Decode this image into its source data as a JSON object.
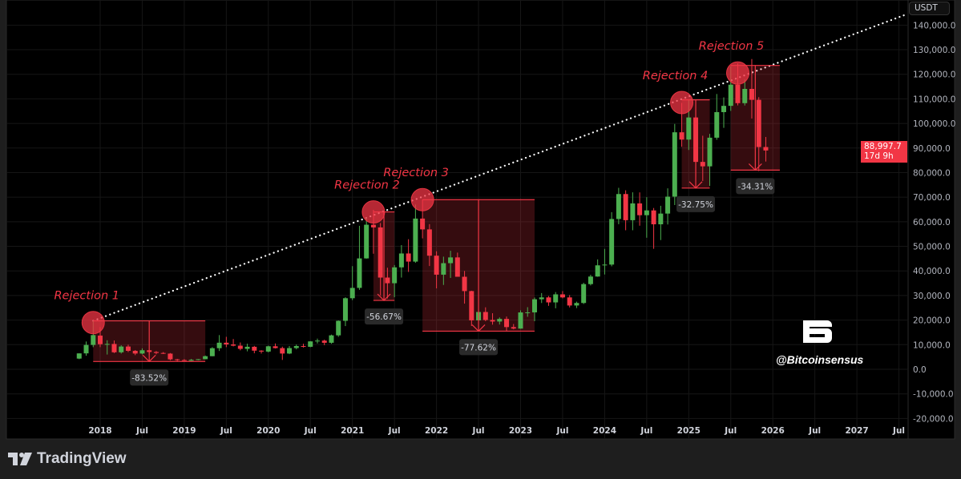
{
  "currency_label": "USDT",
  "last_price": {
    "value": "88,997.7",
    "countdown": "17d 9h",
    "color": "#f23645"
  },
  "watermark": {
    "logo": "B",
    "handle": "@Bitcoinsensus"
  },
  "branding": {
    "name": "TradingView"
  },
  "colors": {
    "up": "#4caf50",
    "down": "#f23645",
    "background": "#000000",
    "annotation": "#f23645"
  },
  "chart_data": {
    "type": "candlestick",
    "interval": "monthly",
    "y_unit": "USDT",
    "ylim": [
      -20000,
      145000
    ],
    "y_ticks": [
      "140,000.0",
      "130,000.0",
      "120,000.0",
      "110,000.0",
      "100,000.0",
      "90,000.0",
      "80,000.0",
      "70,000.0",
      "60,000.0",
      "50,000.0",
      "40,000.0",
      "30,000.0",
      "20,000.0",
      "10,000.0",
      "0.0",
      "-10,000.0",
      "-20,000.0"
    ],
    "y_tick_values": [
      140000,
      130000,
      120000,
      110000,
      100000,
      90000,
      80000,
      70000,
      60000,
      50000,
      40000,
      30000,
      20000,
      10000,
      0,
      -10000,
      -20000
    ],
    "x_ticks": [
      {
        "label": "2018",
        "date": "2018-01"
      },
      {
        "label": "Jul",
        "date": "2018-07"
      },
      {
        "label": "2019",
        "date": "2019-01"
      },
      {
        "label": "Jul",
        "date": "2019-07"
      },
      {
        "label": "2020",
        "date": "2020-01"
      },
      {
        "label": "Jul",
        "date": "2020-07"
      },
      {
        "label": "2021",
        "date": "2021-01"
      },
      {
        "label": "Jul",
        "date": "2021-07"
      },
      {
        "label": "2022",
        "date": "2022-01"
      },
      {
        "label": "Jul",
        "date": "2022-07"
      },
      {
        "label": "2023",
        "date": "2023-01"
      },
      {
        "label": "Jul",
        "date": "2023-07"
      },
      {
        "label": "2024",
        "date": "2024-01"
      },
      {
        "label": "Jul",
        "date": "2024-07"
      },
      {
        "label": "2025",
        "date": "2025-01"
      },
      {
        "label": "Jul",
        "date": "2025-07"
      },
      {
        "label": "2026",
        "date": "2026-01"
      },
      {
        "label": "Jul",
        "date": "2026-07"
      },
      {
        "label": "2027",
        "date": "2027-01"
      },
      {
        "label": "Jul",
        "date": "2027-07"
      }
    ],
    "grid": true,
    "candles": [
      [
        "2017-10",
        4340,
        6470,
        4110,
        6460
      ],
      [
        "2017-11",
        6460,
        11300,
        5500,
        9900
      ],
      [
        "2017-12",
        9900,
        19800,
        9000,
        13900
      ],
      [
        "2018-01",
        13700,
        17200,
        9000,
        10200
      ],
      [
        "2018-02",
        10200,
        11800,
        6000,
        10300
      ],
      [
        "2018-03",
        10300,
        11700,
        6600,
        6900
      ],
      [
        "2018-04",
        6900,
        9750,
        6400,
        9250
      ],
      [
        "2018-05",
        9250,
        10000,
        7000,
        7500
      ],
      [
        "2018-06",
        7500,
        7800,
        5750,
        6400
      ],
      [
        "2018-07",
        6400,
        8500,
        6070,
        7730
      ],
      [
        "2018-08",
        7730,
        7760,
        5880,
        7030
      ],
      [
        "2018-09",
        7030,
        7400,
        6100,
        6630
      ],
      [
        "2018-10",
        6630,
        7000,
        6200,
        6370
      ],
      [
        "2018-11",
        6370,
        6600,
        3650,
        4040
      ],
      [
        "2018-12",
        4040,
        4240,
        3150,
        3740
      ],
      [
        "2019-01",
        3740,
        4140,
        3350,
        3460
      ],
      [
        "2019-02",
        3460,
        4200,
        3400,
        3850
      ],
      [
        "2019-03",
        3850,
        4140,
        3670,
        4100
      ],
      [
        "2019-04",
        4100,
        5600,
        4050,
        5320
      ],
      [
        "2019-05",
        5320,
        9000,
        5300,
        8570
      ],
      [
        "2019-06",
        8570,
        13900,
        7440,
        10800
      ],
      [
        "2019-07",
        10800,
        13200,
        9000,
        10100
      ],
      [
        "2019-08",
        10100,
        12300,
        9300,
        9600
      ],
      [
        "2019-09",
        9600,
        10900,
        7700,
        8300
      ],
      [
        "2019-10",
        8300,
        10400,
        7300,
        9150
      ],
      [
        "2019-11",
        9150,
        9500,
        6500,
        7570
      ],
      [
        "2019-12",
        7570,
        7750,
        6400,
        7200
      ],
      [
        "2020-01",
        7200,
        9600,
        6850,
        9350
      ],
      [
        "2020-02",
        9350,
        10500,
        8450,
        8600
      ],
      [
        "2020-03",
        8600,
        9200,
        3800,
        6400
      ],
      [
        "2020-04",
        6400,
        9460,
        6150,
        8620
      ],
      [
        "2020-05",
        8620,
        10070,
        8100,
        9450
      ],
      [
        "2020-06",
        9450,
        10380,
        8830,
        9140
      ],
      [
        "2020-07",
        9140,
        11450,
        8970,
        11340
      ],
      [
        "2020-08",
        11340,
        12470,
        10500,
        11650
      ],
      [
        "2020-09",
        11650,
        12050,
        9800,
        10780
      ],
      [
        "2020-10",
        10780,
        14100,
        10370,
        13800
      ],
      [
        "2020-11",
        13800,
        19860,
        13200,
        19700
      ],
      [
        "2020-12",
        19700,
        29300,
        17570,
        28900
      ],
      [
        "2021-01",
        28900,
        41950,
        28130,
        33100
      ],
      [
        "2021-02",
        33100,
        58350,
        32300,
        45100
      ],
      [
        "2021-03",
        45100,
        61800,
        45000,
        58800
      ],
      [
        "2021-04",
        58800,
        64850,
        47000,
        57700
      ],
      [
        "2021-05",
        57700,
        59500,
        30000,
        37300
      ],
      [
        "2021-06",
        37300,
        41300,
        28800,
        35000
      ],
      [
        "2021-07",
        35000,
        42400,
        29300,
        41460
      ],
      [
        "2021-08",
        41460,
        50500,
        37300,
        47100
      ],
      [
        "2021-09",
        47100,
        52900,
        39600,
        43800
      ],
      [
        "2021-10",
        43800,
        67000,
        43300,
        61300
      ],
      [
        "2021-11",
        61300,
        69000,
        53250,
        56900
      ],
      [
        "2021-12",
        56900,
        59050,
        42000,
        46200
      ],
      [
        "2022-01",
        46200,
        48000,
        32900,
        38480
      ],
      [
        "2022-02",
        38480,
        45800,
        34300,
        43160
      ],
      [
        "2022-03",
        43160,
        48200,
        37150,
        45500
      ],
      [
        "2022-04",
        45500,
        47450,
        37700,
        37630
      ],
      [
        "2022-05",
        37630,
        40000,
        26700,
        31800
      ],
      [
        "2022-06",
        31800,
        31950,
        17600,
        19900
      ],
      [
        "2022-07",
        19900,
        24650,
        18800,
        23300
      ],
      [
        "2022-08",
        23300,
        25200,
        19550,
        20050
      ],
      [
        "2022-09",
        20050,
        22800,
        18150,
        19420
      ],
      [
        "2022-10",
        19420,
        21100,
        18200,
        20490
      ],
      [
        "2022-11",
        20490,
        21450,
        15480,
        17160
      ],
      [
        "2022-12",
        17160,
        18400,
        16250,
        16540
      ],
      [
        "2023-01",
        16540,
        23950,
        16500,
        23120
      ],
      [
        "2023-02",
        23120,
        25250,
        21350,
        23140
      ],
      [
        "2023-03",
        23140,
        29200,
        19550,
        28480
      ],
      [
        "2023-04",
        28480,
        31000,
        26950,
        29230
      ],
      [
        "2023-05",
        29230,
        29800,
        25800,
        27200
      ],
      [
        "2023-06",
        27200,
        31400,
        24800,
        30470
      ],
      [
        "2023-07",
        30470,
        31800,
        28860,
        29230
      ],
      [
        "2023-08",
        29230,
        30200,
        25150,
        25940
      ],
      [
        "2023-09",
        25940,
        27500,
        24900,
        26960
      ],
      [
        "2023-10",
        26960,
        35200,
        26550,
        34640
      ],
      [
        "2023-11",
        34640,
        38450,
        34100,
        37720
      ],
      [
        "2023-12",
        37720,
        44700,
        37620,
        42280
      ],
      [
        "2024-01",
        42280,
        48970,
        38550,
        42580
      ],
      [
        "2024-02",
        42580,
        63900,
        41880,
        61130
      ],
      [
        "2024-03",
        61130,
        73800,
        59000,
        71280
      ],
      [
        "2024-04",
        71280,
        72800,
        56550,
        60640
      ],
      [
        "2024-05",
        60640,
        71980,
        56550,
        67470
      ],
      [
        "2024-06",
        67470,
        71950,
        58400,
        62670
      ],
      [
        "2024-07",
        62670,
        70000,
        53500,
        64620
      ],
      [
        "2024-08",
        64620,
        65600,
        49000,
        58970
      ],
      [
        "2024-09",
        58970,
        66500,
        52550,
        63330
      ],
      [
        "2024-10",
        63330,
        73600,
        58900,
        70220
      ],
      [
        "2024-11",
        70220,
        99800,
        66800,
        96400
      ],
      [
        "2024-12",
        96400,
        108350,
        90500,
        93430
      ],
      [
        "2025-01",
        93430,
        109600,
        89200,
        102430
      ],
      [
        "2025-02",
        102430,
        102500,
        78250,
        84350
      ],
      [
        "2025-03",
        84350,
        95000,
        76600,
        82550
      ],
      [
        "2025-04",
        82550,
        95750,
        74600,
        94200
      ],
      [
        "2025-05",
        94200,
        111980,
        93350,
        104600
      ],
      [
        "2025-06",
        104600,
        110600,
        98200,
        107150
      ],
      [
        "2025-07",
        107150,
        123200,
        105100,
        115760
      ],
      [
        "2025-08",
        115760,
        124450,
        107350,
        108250
      ],
      [
        "2025-09",
        108250,
        117900,
        107300,
        114050
      ],
      [
        "2025-10",
        114050,
        126200,
        102000,
        109600
      ],
      [
        "2025-11",
        109600,
        110700,
        80600,
        90400
      ],
      [
        "2025-12",
        90400,
        94500,
        84500,
        88997.7
      ]
    ],
    "trendline": {
      "style": "dotted",
      "color": "#ffffff",
      "from": [
        "2017-12",
        19700
      ],
      "to": [
        "2027-08",
        144300
      ]
    },
    "annotations": [
      {
        "label": "Rejection 1",
        "change": "-83.52%",
        "peak": [
          "2017-12",
          19000
        ],
        "box": {
          "from": "2017-12",
          "to": "2019-04",
          "high": 19700,
          "low": 3150
        }
      },
      {
        "label": "Rejection 2",
        "change": "-56.67%",
        "peak": [
          "2021-04",
          64000
        ],
        "box": {
          "from": "2021-04",
          "to": "2021-07",
          "high": 64000,
          "low": 28000
        }
      },
      {
        "label": "Rejection 3",
        "change": "-77.62%",
        "peak": [
          "2021-11",
          69000
        ],
        "box": {
          "from": "2021-11",
          "to": "2023-03",
          "high": 69000,
          "low": 15500
        }
      },
      {
        "label": "Rejection 4",
        "change": "-32.75%",
        "peak": [
          "2024-12",
          108500
        ],
        "box": {
          "from": "2024-12",
          "to": "2025-04",
          "high": 109600,
          "low": 73700
        }
      },
      {
        "label": "Rejection 5",
        "change": "-34.31%",
        "peak": [
          "2025-08",
          120500
        ],
        "box": {
          "from": "2025-07",
          "to": "2026-02",
          "high": 123600,
          "low": 81000
        }
      }
    ]
  }
}
